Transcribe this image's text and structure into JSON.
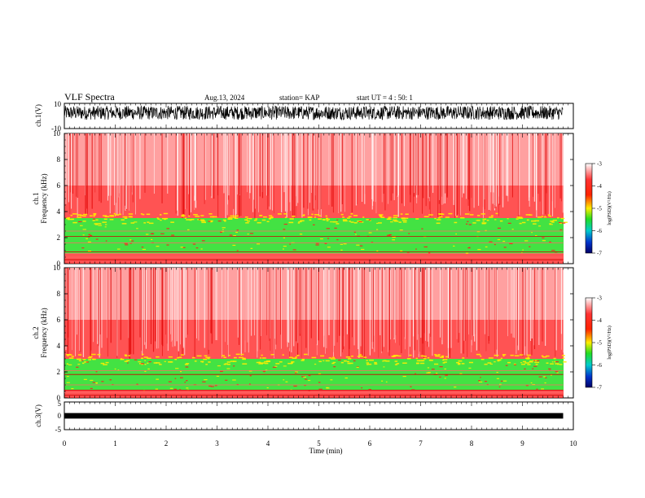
{
  "header": {
    "title": "VLF Spectra",
    "date": "Aug.13, 2024",
    "station": "station= KAP",
    "start": "start UT =  4 : 50: 1"
  },
  "colors": {
    "high": "#ff1a1a",
    "mid": "#ffee00",
    "low": "#22dd22",
    "cold": "#0033cc",
    "background": "#ffffff"
  },
  "colorbar": {
    "label": "log(PSD)(V²/Hz)",
    "ticks": [
      "-3",
      "-4",
      "-5",
      "-6",
      "-7"
    ],
    "range": [
      -7,
      -3
    ]
  },
  "chart_data": [
    {
      "type": "line",
      "name": "ch1-waveform",
      "ylabel": "ch.1(V)",
      "ylim": [
        -10,
        10
      ],
      "yticks": [
        "10",
        "-10"
      ],
      "xlim": [
        0,
        10
      ],
      "description_values": "noise band between about -4 and +8 V"
    },
    {
      "type": "heatmap",
      "name": "ch1-spectrogram",
      "ylabel": "ch.1\nFrequency (kHz)",
      "ylabel_top": "ch.1",
      "ylabel_bottom": "Frequency (kHz)",
      "yticks": [
        "0",
        "2",
        "4",
        "6",
        "8",
        "10"
      ],
      "ylim": [
        0,
        10
      ],
      "xlim": [
        0,
        9.8
      ],
      "bands": [
        {
          "fmin": 0.0,
          "fmax": 0.8,
          "level": "high"
        },
        {
          "fmin": 0.8,
          "fmax": 3.5,
          "level": "low"
        },
        {
          "fmin": 3.5,
          "fmax": 10.0,
          "level": "high"
        }
      ]
    },
    {
      "type": "heatmap",
      "name": "ch2-spectrogram",
      "ylabel_top": "ch.2",
      "ylabel_bottom": "Frequency (kHz)",
      "yticks": [
        "0",
        "2",
        "4",
        "6",
        "8",
        "10"
      ],
      "ylim": [
        0,
        10
      ],
      "xlim": [
        0,
        9.8
      ],
      "bands": [
        {
          "fmin": 0.0,
          "fmax": 0.6,
          "level": "high"
        },
        {
          "fmin": 0.6,
          "fmax": 3.0,
          "level": "low"
        },
        {
          "fmin": 3.0,
          "fmax": 10.0,
          "level": "high"
        }
      ]
    },
    {
      "type": "line",
      "name": "ch3-waveform",
      "ylabel": "ch.3(V)",
      "ylim": [
        -5,
        5
      ],
      "yticks": [
        "5",
        "0",
        "-5"
      ],
      "xlim": [
        0,
        10
      ],
      "band": [
        -1,
        1
      ]
    }
  ],
  "xaxis": {
    "label": "Time (min)",
    "ticks": [
      "0",
      "1",
      "2",
      "3",
      "4",
      "5",
      "6",
      "7",
      "8",
      "9",
      "10"
    ],
    "xlim": [
      0,
      10
    ]
  }
}
